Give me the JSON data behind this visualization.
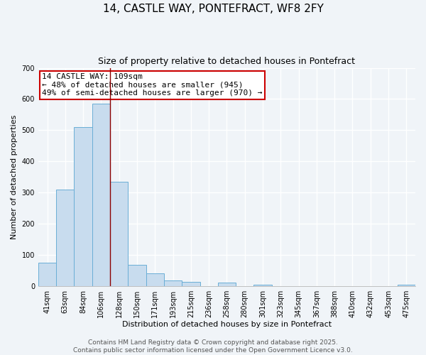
{
  "title": "14, CASTLE WAY, PONTEFRACT, WF8 2FY",
  "subtitle": "Size of property relative to detached houses in Pontefract",
  "xlabel": "Distribution of detached houses by size in Pontefract",
  "ylabel": "Number of detached properties",
  "bar_labels": [
    "41sqm",
    "63sqm",
    "84sqm",
    "106sqm",
    "128sqm",
    "150sqm",
    "171sqm",
    "193sqm",
    "215sqm",
    "236sqm",
    "258sqm",
    "280sqm",
    "301sqm",
    "323sqm",
    "345sqm",
    "367sqm",
    "388sqm",
    "410sqm",
    "432sqm",
    "453sqm",
    "475sqm"
  ],
  "bar_values": [
    75,
    310,
    510,
    585,
    335,
    68,
    40,
    18,
    12,
    0,
    10,
    0,
    5,
    0,
    0,
    0,
    0,
    0,
    0,
    0,
    3
  ],
  "bar_color": "#c8dcee",
  "bar_edge_color": "#6aaed6",
  "vline_x": 3.5,
  "vline_color": "#8b0000",
  "annotation_title": "14 CASTLE WAY: 109sqm",
  "annotation_line1": "← 48% of detached houses are smaller (945)",
  "annotation_line2": "49% of semi-detached houses are larger (970) →",
  "annotation_box_color": "#ffffff",
  "annotation_box_edge_color": "#cc0000",
  "ylim": [
    0,
    700
  ],
  "yticks": [
    0,
    100,
    200,
    300,
    400,
    500,
    600,
    700
  ],
  "footer1": "Contains HM Land Registry data © Crown copyright and database right 2025.",
  "footer2": "Contains public sector information licensed under the Open Government Licence v3.0.",
  "bg_color": "#f0f4f8",
  "grid_color": "#ffffff",
  "title_fontsize": 11,
  "subtitle_fontsize": 9,
  "axis_label_fontsize": 8,
  "tick_fontsize": 7,
  "footer_fontsize": 6.5,
  "annotation_fontsize": 8
}
